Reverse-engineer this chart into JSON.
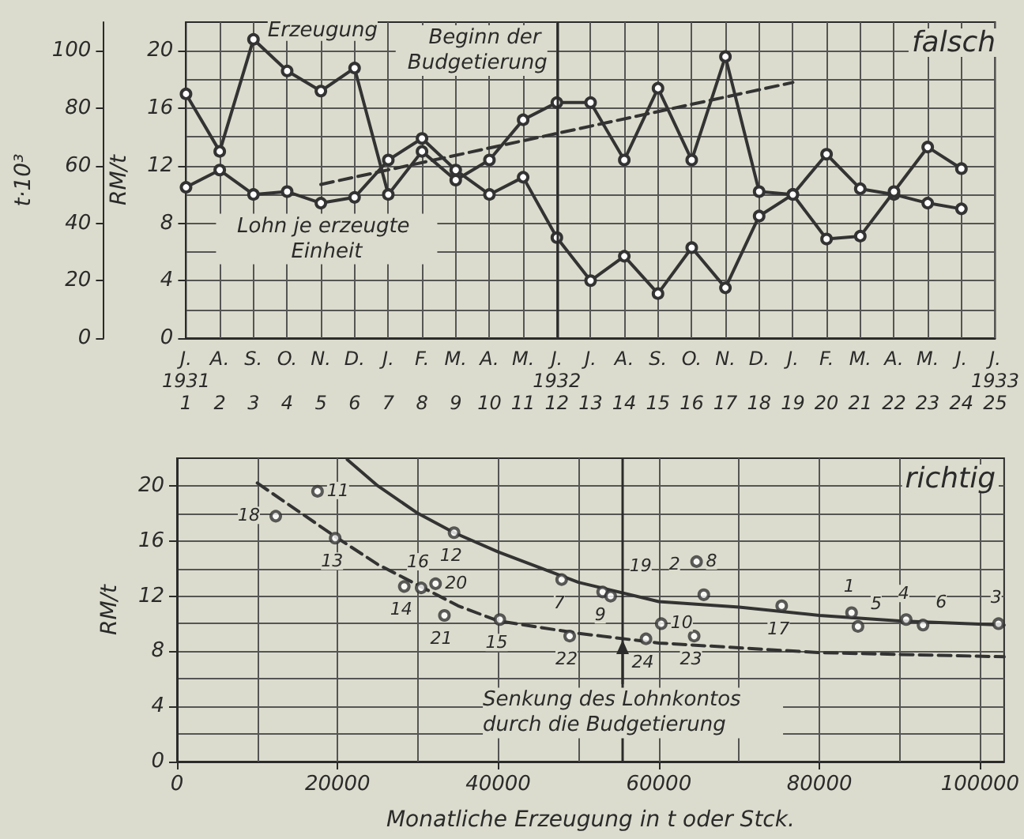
{
  "chart_data": [
    {
      "type": "line",
      "title": "falsch",
      "categories": [
        "J.\n1931\n1",
        "A.\n\n2",
        "S.\n\n3",
        "O.\n\n4",
        "N.\n\n5",
        "D.\n\n6",
        "J.\n\n7",
        "F.\n\n8",
        "M.\n\n9",
        "A.\n\n10",
        "M.\n\n11",
        "J.\n1932\n12",
        "J.\n\n13",
        "A.\n\n14",
        "S.\n\n15",
        "O.\n\n16",
        "N.\n\n17",
        "D.\n\n18",
        "J.\n\n19",
        "F.\n\n20",
        "M.\n\n21",
        "A.\n\n22",
        "M.\n\n23",
        "J.\n\n24",
        "J.\n1933\n25"
      ],
      "series": [
        {
          "name": "Erzeugung",
          "color": "#333333",
          "values": [
            85,
            65,
            104,
            93,
            86,
            94,
            50,
            65,
            55,
            62,
            76,
            82,
            82,
            62,
            87,
            62,
            98,
            51,
            50,
            64,
            52,
            50,
            47,
            45,
            null
          ]
        },
        {
          "name": "Lohn je erzeugte Einheit",
          "color": "#333333",
          "axis": "y2",
          "values": [
            10.5,
            11.7,
            10.0,
            10.2,
            9.4,
            9.8,
            12.4,
            13.9,
            11.7,
            10.0,
            11.2,
            7.0,
            4.0,
            5.7,
            3.1,
            6.3,
            3.5,
            8.5,
            10.0,
            6.9,
            7.1,
            10.2,
            13.3,
            11.8,
            null
          ]
        },
        {
          "type": "line",
          "color": "#333333",
          "axis": "y2",
          "line_style": "dashed",
          "marker": "none",
          "x": [
            "N.\n\n5",
            "J.\n\n19"
          ],
          "values": [
            10.7,
            17.8
          ]
        }
      ],
      "ylabel": "t·10³",
      "ylim": [
        0,
        110
      ],
      "yticks": [
        0,
        20,
        40,
        60,
        80,
        100
      ],
      "y2label": "RM/t",
      "y2lim": [
        0,
        22
      ],
      "y2ticks": [
        0,
        4,
        8,
        12,
        16,
        20
      ],
      "ref_lines": [
        {
          "axis": "x",
          "value": "J.\n1932\n12",
          "label": "Beginn der Budgetierung"
        }
      ],
      "grid": true,
      "legend": false,
      "marker": "circle",
      "line_style": "solid"
    },
    {
      "type": "scatter",
      "title": "richtig",
      "xlabel": "Monatliche Erzeugung in t oder Stck.",
      "ylabel": "RM/t",
      "xlim": [
        0,
        103000
      ],
      "xticks": [
        0,
        20000,
        40000,
        60000,
        80000,
        100000
      ],
      "ylim": [
        0,
        22
      ],
      "yticks": [
        0,
        4,
        8,
        12,
        16,
        20
      ],
      "series": [
        {
          "type": "line",
          "color": "#333333",
          "line_style": "solid",
          "marker": "none",
          "x": [
            21200,
            25000,
            30000,
            34500,
            40000,
            45000,
            50000,
            60000,
            70000,
            80000,
            90000,
            103000
          ],
          "values": [
            21.9,
            20.0,
            18.0,
            16.6,
            15.2,
            14.1,
            13.0,
            11.6,
            11.2,
            10.6,
            10.2,
            9.9
          ]
        },
        {
          "type": "line",
          "color": "#333333",
          "line_style": "dashed",
          "marker": "none",
          "x": [
            10000,
            15000,
            20000,
            25000,
            30000,
            35000,
            40000,
            50000,
            60000,
            80000,
            103000
          ],
          "values": [
            20.2,
            18.2,
            16.2,
            14.3,
            12.8,
            11.3,
            10.2,
            9.3,
            8.6,
            7.9,
            7.6
          ]
        },
        {
          "color": "#333333",
          "x": [
            17500,
            12300,
            19700,
            34500,
            28300,
            30400,
            32200,
            33300,
            40200,
            47900,
            53000,
            54000,
            48900,
            58400,
            60300,
            64400,
            64700,
            65600,
            75300,
            84000,
            84800,
            90800,
            92900,
            102300
          ],
          "values": [
            19.6,
            17.8,
            16.2,
            16.6,
            12.7,
            12.6,
            12.9,
            10.6,
            10.3,
            13.2,
            12.3,
            12.0,
            9.1,
            8.9,
            10.0,
            9.1,
            14.5,
            12.1,
            11.3,
            10.8,
            9.8,
            10.3,
            9.9,
            10.0
          ]
        }
      ],
      "ref_lines": [
        {
          "axis": "x",
          "value": 55400
        }
      ],
      "annotations": [
        {
          "text": "Senkung des Lohnkontos durch die Budgetierung",
          "x": 55400,
          "y": 8.8
        },
        {
          "text": "11",
          "x": 17500,
          "y": 19.6
        },
        {
          "text": "18",
          "x": 12300,
          "y": 17.8
        },
        {
          "text": "13",
          "x": 19700,
          "y": 16.2
        },
        {
          "text": "12",
          "x": 34500,
          "y": 16.6
        },
        {
          "text": "14",
          "x": 28300,
          "y": 12.7
        },
        {
          "text": "16",
          "x": 30400,
          "y": 12.6
        },
        {
          "text": "20",
          "x": 32200,
          "y": 12.9
        },
        {
          "text": "21",
          "x": 33300,
          "y": 10.6
        },
        {
          "text": "15",
          "x": 40200,
          "y": 10.3
        },
        {
          "text": "7",
          "x": 47900,
          "y": 13.2
        },
        {
          "text": "9",
          "x": 53000,
          "y": 12.3
        },
        {
          "text": "19",
          "x": 54000,
          "y": 12.0
        },
        {
          "text": "22",
          "x": 48900,
          "y": 9.1
        },
        {
          "text": "24",
          "x": 58400,
          "y": 8.9
        },
        {
          "text": "10",
          "x": 60300,
          "y": 10.0
        },
        {
          "text": "23",
          "x": 64400,
          "y": 9.1
        },
        {
          "text": "8",
          "x": 64700,
          "y": 14.5
        },
        {
          "text": "2",
          "x": 65600,
          "y": 12.1
        },
        {
          "text": "17",
          "x": 75300,
          "y": 11.3
        },
        {
          "text": "1",
          "x": 84000,
          "y": 10.8
        },
        {
          "text": "5",
          "x": 84800,
          "y": 9.8
        },
        {
          "text": "4",
          "x": 90800,
          "y": 10.3
        },
        {
          "text": "6",
          "x": 92900,
          "y": 9.9
        },
        {
          "text": "3",
          "x": 102300,
          "y": 10.0
        }
      ],
      "grid": true,
      "legend": false,
      "marker": "circle"
    }
  ]
}
